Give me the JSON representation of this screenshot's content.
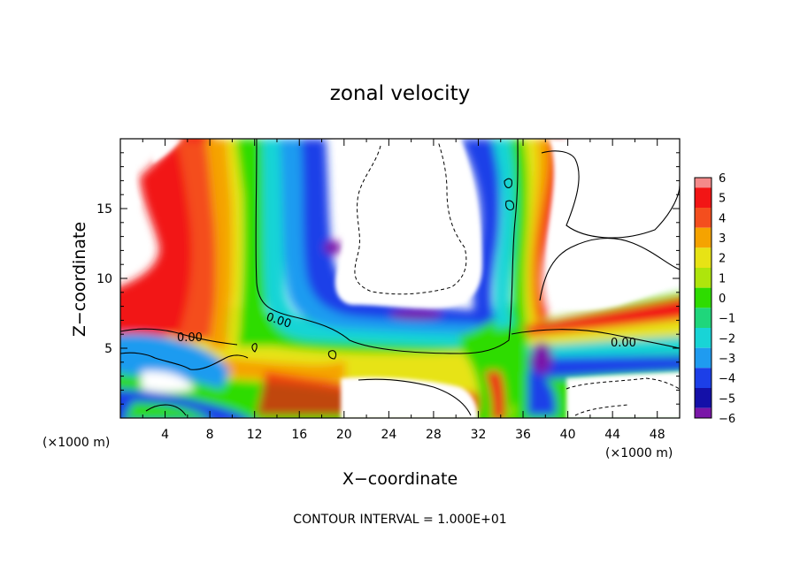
{
  "chart_data": {
    "type": "heatmap",
    "title": "zonal velocity",
    "xlabel": "X−coordinate",
    "ylabel": "Z−coordinate",
    "x_unit_left": "(×1000 m)",
    "x_unit_right": "(×1000 m)",
    "xlim": [
      0,
      50
    ],
    "ylim": [
      0,
      20
    ],
    "x_ticks": [
      4,
      8,
      12,
      16,
      20,
      24,
      28,
      32,
      36,
      40,
      44,
      48
    ],
    "x_tick_labels": [
      "4",
      "8",
      "12",
      "16",
      "20",
      "24",
      "28",
      "32",
      "36",
      "40",
      "44",
      "48"
    ],
    "y_ticks": [
      5,
      10,
      15
    ],
    "y_tick_labels": [
      "5",
      "10",
      "15"
    ],
    "colorbar": {
      "levels": [
        6,
        5,
        4,
        3,
        2,
        1,
        0,
        -1,
        -2,
        -3,
        -4,
        -5,
        -6
      ],
      "labels": [
        "6",
        "5",
        "4",
        "3",
        "2",
        "1",
        "0",
        "−1",
        "−2",
        "−3",
        "−4",
        "−5",
        "−6"
      ],
      "colors": [
        "#f48a8a",
        "#f21515",
        "#f44e1e",
        "#f5a300",
        "#e7e315",
        "#aee50c",
        "#2edc00",
        "#1fd67b",
        "#18d4d6",
        "#1f9bf0",
        "#1c3fe8",
        "#1410a8",
        "#7a17a8"
      ]
    },
    "contour_labels": [
      "0.00",
      "0.00",
      "0.00",
      "0.00"
    ],
    "footer": "CONTOUR INTERVAL = 1.000E+01"
  }
}
